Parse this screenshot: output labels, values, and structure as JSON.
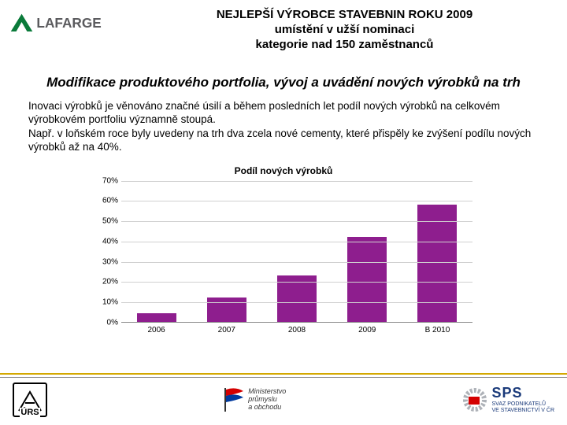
{
  "header": {
    "logo_text": "LAFARGE",
    "logo_green": "#0a7a3a",
    "logo_gray": "#5b5b5e",
    "title_line1": "NEJLEPŠÍ VÝROBCE STAVEBNIN ROKU 2009",
    "title_line2": "umístění v užší nominaci",
    "title_line3": "kategorie nad 150 zaměstnanců"
  },
  "subtitle": "Modifikace produktového portfolia, vývoj a uvádění nových výrobků na trh",
  "paragraph1": "Inovaci výrobků je věnováno značné úsilí a během posledních let podíl nových výrobků na celkovém výrobkovém portfoliu významně stoupá.",
  "paragraph2": "Např. v loňském roce byly uvedeny na trh dva zcela nové cementy, které přispěly ke zvýšení podílu nových výrobků až na 40%.",
  "chart": {
    "type": "bar",
    "title": "Podíl nových výrobků",
    "categories": [
      "2006",
      "2007",
      "2008",
      "2009",
      "B 2010"
    ],
    "values": [
      4,
      12,
      23,
      42,
      58
    ],
    "bar_color": "#8e1e8e",
    "ylim_max": 70,
    "ytick_step": 10,
    "yticks": [
      "0%",
      "10%",
      "20%",
      "30%",
      "40%",
      "50%",
      "60%",
      "70%"
    ],
    "grid_color": "#d0d0d0",
    "axis_color": "#888888",
    "background_color": "#ffffff",
    "title_fontsize": 12,
    "tick_fontsize": 10,
    "bar_width_ratio": 0.56
  },
  "accent_line_color": "#d4a800",
  "footer": {
    "urs_label": "ÚRS",
    "mpo_top": "Ministerstvo",
    "mpo_mid": "průmyslu",
    "mpo_bot": "a obchodu",
    "mpo_flag_colors": [
      "#ffffff",
      "#d40000",
      "#003a9e"
    ],
    "sps_brand": "SPS",
    "sps_line1": "SVAZ PODNIKATELŮ",
    "sps_line2": "VE STAVEBNICTVÍ V ČR",
    "sps_color": "#1a3a7a"
  }
}
